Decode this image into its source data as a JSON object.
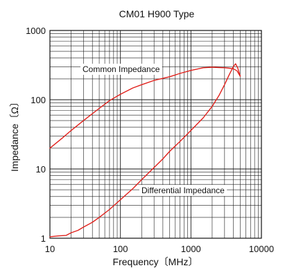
{
  "chart_data": {
    "type": "line",
    "title": "CM01 H900 Type",
    "xlabel": "Frequency〔MHz〕",
    "ylabel": "Impedance〔Ω〕",
    "x_scale": "log",
    "y_scale": "log",
    "xlim": [
      10,
      10000
    ],
    "ylim": [
      1,
      1000
    ],
    "x_ticks": [
      "10",
      "100",
      "1000",
      "10000"
    ],
    "y_ticks": [
      "1",
      "10",
      "100",
      "1000"
    ],
    "grid": true,
    "line_color": "#e0201b",
    "series": [
      {
        "name": "Common Impedance",
        "x": [
          10,
          15,
          20,
          30,
          50,
          70,
          100,
          150,
          200,
          300,
          500,
          700,
          1000,
          1500,
          2000,
          2500,
          3000,
          3500,
          4000,
          4500,
          5000
        ],
        "y": [
          20,
          28,
          36,
          50,
          75,
          97,
          120,
          148,
          165,
          190,
          215,
          240,
          265,
          290,
          295,
          292,
          290,
          285,
          280,
          262,
          218
        ]
      },
      {
        "name": "Differential Impedance",
        "x": [
          10,
          13,
          17,
          20,
          25,
          30,
          40,
          50,
          70,
          100,
          150,
          200,
          300,
          400,
          500,
          700,
          1000,
          1500,
          2000,
          2500,
          3000,
          3500,
          4000,
          4300,
          4600,
          5000
        ],
        "y": [
          1.05,
          1.08,
          1.1,
          1.2,
          1.3,
          1.45,
          1.7,
          2.0,
          2.6,
          3.6,
          5.2,
          7.0,
          10.5,
          14.0,
          18.0,
          25.0,
          36.0,
          55.0,
          80.0,
          115.0,
          165.0,
          230.0,
          300.0,
          330.0,
          290.0,
          220.0
        ]
      }
    ]
  }
}
